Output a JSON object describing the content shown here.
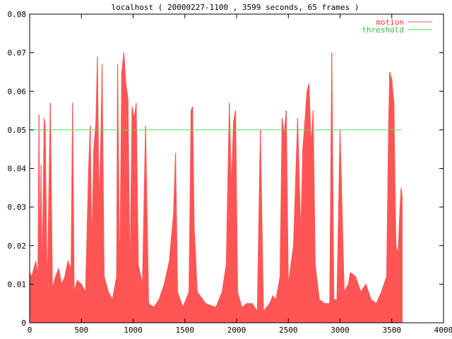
{
  "chart_data": {
    "type": "area",
    "title": "localhost ( 20000227-1100 , 3599 seconds, 65 frames )",
    "xlabel": "",
    "ylabel": "",
    "xlim": [
      0,
      4000
    ],
    "ylim": [
      0,
      0.08
    ],
    "x_ticks": [
      "0",
      "500",
      "1000",
      "1500",
      "2000",
      "2500",
      "3000",
      "3500",
      "4000"
    ],
    "y_ticks": [
      "0",
      "0.01",
      "0.02",
      "0.03",
      "0.04",
      "0.05",
      "0.06",
      "0.07",
      "0.08"
    ],
    "grid": false,
    "legend_position": "top-right",
    "series": [
      {
        "name": "motion",
        "color": "#ff5555",
        "style": "impulses",
        "points": [
          [
            0,
            0.013
          ],
          [
            20,
            0.012
          ],
          [
            40,
            0.014
          ],
          [
            60,
            0.016
          ],
          [
            80,
            0.012
          ],
          [
            90,
            0.054
          ],
          [
            100,
            0.015
          ],
          [
            110,
            0.041
          ],
          [
            120,
            0.01
          ],
          [
            140,
            0.053
          ],
          [
            150,
            0.051
          ],
          [
            170,
            0.008
          ],
          [
            200,
            0.057
          ],
          [
            220,
            0.009
          ],
          [
            250,
            0.012
          ],
          [
            280,
            0.014
          ],
          [
            310,
            0.01
          ],
          [
            340,
            0.012
          ],
          [
            370,
            0.016
          ],
          [
            400,
            0.014
          ],
          [
            415,
            0.057
          ],
          [
            430,
            0.008
          ],
          [
            460,
            0.011
          ],
          [
            500,
            0.01
          ],
          [
            540,
            0.008
          ],
          [
            570,
            0.04
          ],
          [
            585,
            0.051
          ],
          [
            600,
            0.02
          ],
          [
            620,
            0.045
          ],
          [
            640,
            0.052
          ],
          [
            655,
            0.069
          ],
          [
            670,
            0.03
          ],
          [
            690,
            0.05
          ],
          [
            700,
            0.067
          ],
          [
            720,
            0.012
          ],
          [
            760,
            0.008
          ],
          [
            800,
            0.006
          ],
          [
            840,
            0.012
          ],
          [
            850,
            0.067
          ],
          [
            870,
            0.01
          ],
          [
            890,
            0.065
          ],
          [
            910,
            0.07
          ],
          [
            930,
            0.062
          ],
          [
            950,
            0.058
          ],
          [
            970,
            0.012
          ],
          [
            990,
            0.056
          ],
          [
            1010,
            0.053
          ],
          [
            1030,
            0.057
          ],
          [
            1050,
            0.015
          ],
          [
            1090,
            0.01
          ],
          [
            1120,
            0.051
          ],
          [
            1150,
            0.005
          ],
          [
            1200,
            0.004
          ],
          [
            1250,
            0.006
          ],
          [
            1300,
            0.01
          ],
          [
            1350,
            0.016
          ],
          [
            1390,
            0.028
          ],
          [
            1410,
            0.044
          ],
          [
            1430,
            0.008
          ],
          [
            1480,
            0.004
          ],
          [
            1540,
            0.008
          ],
          [
            1560,
            0.055
          ],
          [
            1575,
            0.056
          ],
          [
            1590,
            0.025
          ],
          [
            1620,
            0.008
          ],
          [
            1700,
            0.005
          ],
          [
            1800,
            0.004
          ],
          [
            1860,
            0.008
          ],
          [
            1900,
            0.015
          ],
          [
            1930,
            0.057
          ],
          [
            1950,
            0.035
          ],
          [
            1970,
            0.052
          ],
          [
            1990,
            0.055
          ],
          [
            2010,
            0.008
          ],
          [
            2050,
            0.004
          ],
          [
            2100,
            0.005
          ],
          [
            2150,
            0.005
          ],
          [
            2200,
            0.003
          ],
          [
            2230,
            0.05
          ],
          [
            2260,
            0.003
          ],
          [
            2320,
            0.005
          ],
          [
            2350,
            0.007
          ],
          [
            2380,
            0.006
          ],
          [
            2420,
            0.012
          ],
          [
            2440,
            0.053
          ],
          [
            2460,
            0.049
          ],
          [
            2480,
            0.055
          ],
          [
            2500,
            0.01
          ],
          [
            2550,
            0.02
          ],
          [
            2590,
            0.053
          ],
          [
            2620,
            0.023
          ],
          [
            2640,
            0.045
          ],
          [
            2660,
            0.052
          ],
          [
            2680,
            0.06
          ],
          [
            2700,
            0.062
          ],
          [
            2720,
            0.046
          ],
          [
            2740,
            0.055
          ],
          [
            2760,
            0.015
          ],
          [
            2800,
            0.006
          ],
          [
            2850,
            0.005
          ],
          [
            2900,
            0.005
          ],
          [
            2920,
            0.07
          ],
          [
            2940,
            0.006
          ],
          [
            2970,
            0.006
          ],
          [
            3000,
            0.05
          ],
          [
            3040,
            0.008
          ],
          [
            3080,
            0.01
          ],
          [
            3100,
            0.013
          ],
          [
            3150,
            0.012
          ],
          [
            3200,
            0.008
          ],
          [
            3250,
            0.01
          ],
          [
            3300,
            0.006
          ],
          [
            3350,
            0.005
          ],
          [
            3400,
            0.008
          ],
          [
            3450,
            0.012
          ],
          [
            3470,
            0.052
          ],
          [
            3480,
            0.065
          ],
          [
            3500,
            0.063
          ],
          [
            3520,
            0.057
          ],
          [
            3540,
            0.02
          ],
          [
            3560,
            0.018
          ],
          [
            3580,
            0.03
          ],
          [
            3590,
            0.035
          ],
          [
            3599,
            0.033
          ]
        ]
      },
      {
        "name": "threshold",
        "color": "#55dd55",
        "style": "line",
        "points": [
          [
            0,
            0.05
          ],
          [
            3599,
            0.05
          ]
        ]
      }
    ]
  }
}
